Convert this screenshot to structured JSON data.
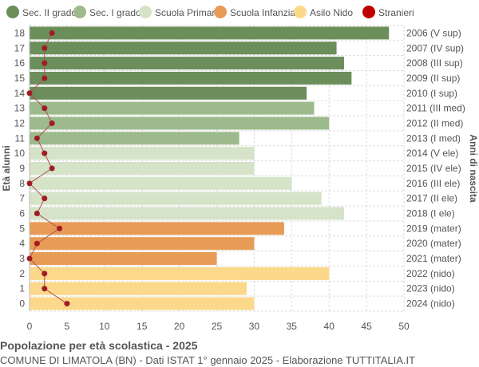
{
  "chart_data": {
    "type": "bar",
    "orientation": "horizontal",
    "title": "Popolazione per età scolastica - 2025",
    "subtitle": "COMUNE DI LIMATOLA (BN) - Dati ISTAT 1° gennaio 2025 - Elaborazione TUTTITALIA.IT",
    "ylabel": "Età alunni",
    "ylabel_right": "Anni di nascita",
    "xlim": [
      0,
      50
    ],
    "xticks": [
      0,
      5,
      10,
      15,
      20,
      25,
      30,
      35,
      40,
      45,
      50
    ],
    "grid": true,
    "legend_position": "top",
    "legend": [
      {
        "label": "Sec. II grado",
        "color": "#6b8e5a"
      },
      {
        "label": "Sec. I grado",
        "color": "#9dba8c"
      },
      {
        "label": "Scuola Primaria",
        "color": "#d5e3c8"
      },
      {
        "label": "Scuola Infanzia",
        "color": "#e89b55"
      },
      {
        "label": "Asilo Nido",
        "color": "#fcd88a"
      },
      {
        "label": "Stranieri",
        "color": "#c00000"
      }
    ],
    "categories": [
      "18",
      "17",
      "16",
      "15",
      "14",
      "13",
      "12",
      "11",
      "10",
      "9",
      "8",
      "7",
      "6",
      "5",
      "4",
      "3",
      "2",
      "1",
      "0"
    ],
    "birth_years": [
      "2006 (V sup)",
      "2007 (IV sup)",
      "2008 (III sup)",
      "2009 (II sup)",
      "2010 (I sup)",
      "2011 (III med)",
      "2012 (II med)",
      "2013 (I med)",
      "2014 (V ele)",
      "2015 (IV ele)",
      "2016 (III ele)",
      "2017 (II ele)",
      "2018 (I ele)",
      "2019 (mater)",
      "2020 (mater)",
      "2021 (mater)",
      "2022 (nido)",
      "2023 (nido)",
      "2024 (nido)"
    ],
    "school_level": [
      0,
      0,
      0,
      0,
      0,
      1,
      1,
      1,
      2,
      2,
      2,
      2,
      2,
      3,
      3,
      3,
      4,
      4,
      4
    ],
    "values": [
      48,
      41,
      42,
      43,
      37,
      38,
      40,
      28,
      30,
      30,
      35,
      39,
      42,
      34,
      30,
      25,
      40,
      29,
      30
    ],
    "stranieri": [
      3,
      2,
      2,
      2,
      0,
      2,
      3,
      1,
      2,
      3,
      0,
      2,
      1,
      4,
      1,
      0,
      2,
      2,
      5
    ]
  }
}
